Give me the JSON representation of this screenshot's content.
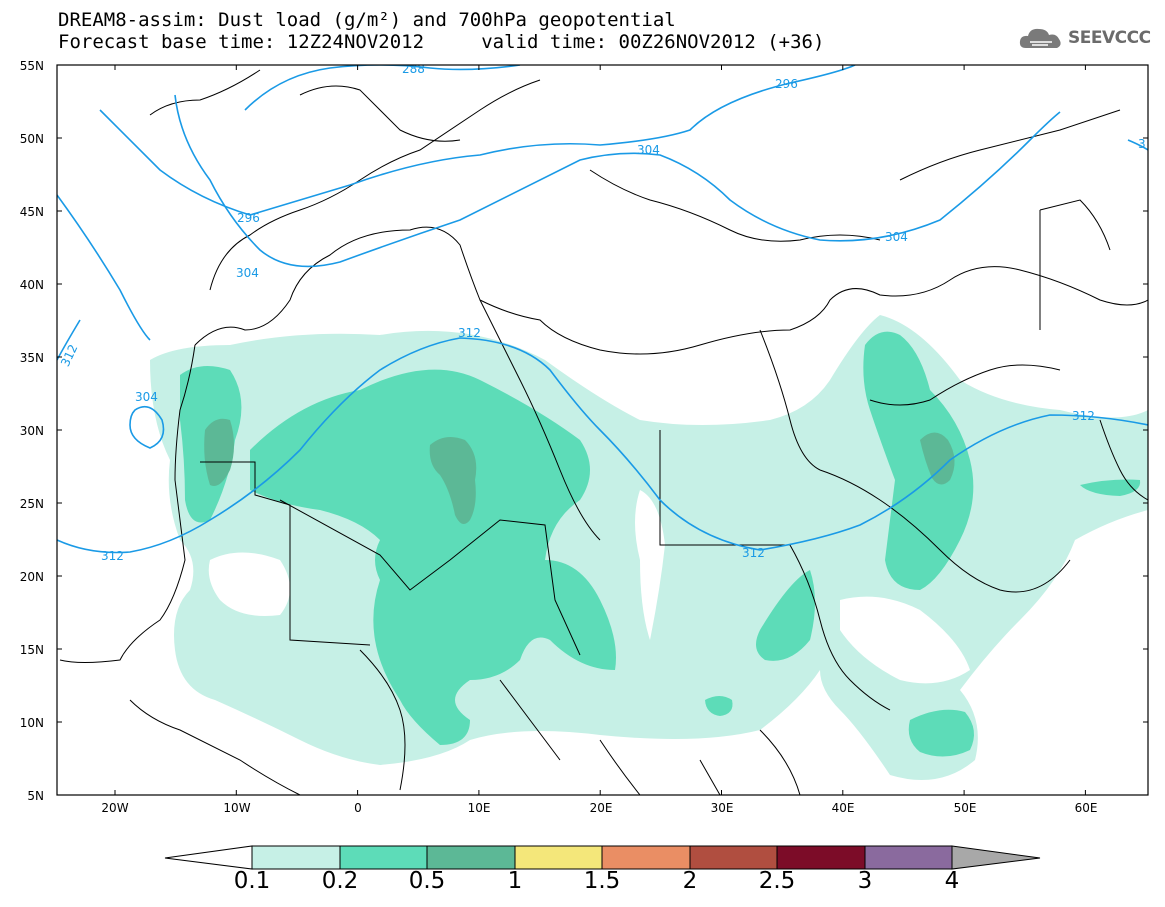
{
  "header": {
    "title_line1": "DREAM8-assim: Dust load (g/m²) and 700hPa geopotential",
    "title_line2": "Forecast base time: 12Z24NOV2012     valid time: 00Z26NOV2012 (+36)",
    "logo_text": "SEEVCCC",
    "logo_icon": "cloud-icon"
  },
  "axes": {
    "lat_labels": [
      "55N",
      "50N",
      "45N",
      "40N",
      "35N",
      "30N",
      "25N",
      "20N",
      "15N",
      "10N",
      "5N"
    ],
    "lon_labels": [
      "20W",
      "10W",
      "0",
      "10E",
      "20E",
      "30E",
      "40E",
      "50E",
      "60E"
    ]
  },
  "contours": {
    "labels": [
      "288",
      "296",
      "296",
      "304",
      "304",
      "304",
      "304",
      "312",
      "312",
      "312",
      "312",
      "312",
      "3"
    ],
    "color": "#1a9ae6"
  },
  "colorbar": {
    "levels": [
      "0.1",
      "0.2",
      "0.5",
      "1",
      "1.5",
      "2",
      "2.5",
      "3",
      "4"
    ],
    "colors": [
      "#ffffff",
      "#c6f0e6",
      "#5ddcb8",
      "#5cb896",
      "#f4e77a",
      "#ea8e64",
      "#b04e40",
      "#7c0c28",
      "#8a6a9e",
      "#a8a8a8"
    ]
  },
  "map_colors": {
    "land_border": "#000000",
    "dust_low": "#c6f0e6",
    "dust_mid": "#5ddcb8",
    "dust_high": "#5cb896"
  }
}
